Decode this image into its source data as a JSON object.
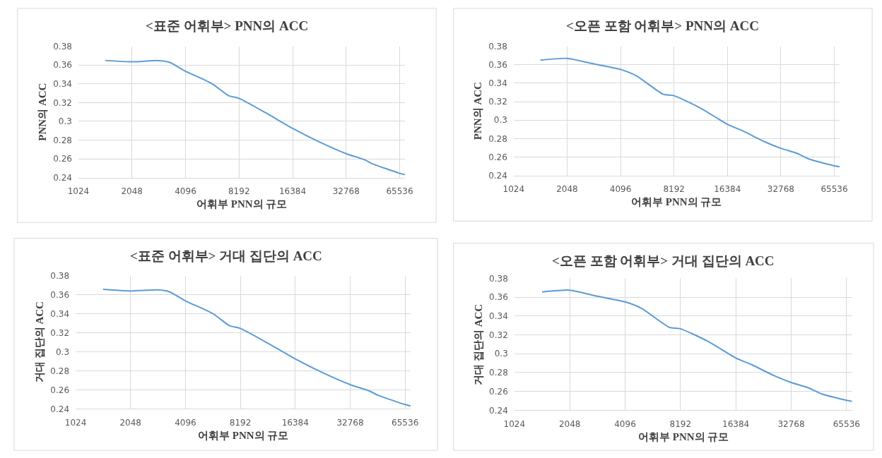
{
  "chart_data": [
    {
      "type": "line",
      "title": "<표준 어휘부> PNN의 ACC",
      "xlabel": "어휘부 PNN의 규모",
      "ylabel": "PNN의 ACC",
      "log": "x",
      "grid": true,
      "xlim": [
        1024,
        70240
      ],
      "xticks": [
        1024,
        2048,
        4096,
        8192,
        16384,
        32768,
        65536
      ],
      "ylim": [
        0.24,
        0.38
      ],
      "yticks": [
        0.24,
        0.26,
        0.28,
        0.3,
        0.32,
        0.34,
        0.36,
        0.38
      ],
      "x": [
        1448,
        2048,
        2896,
        3327,
        4096,
        5793,
        7132,
        8192,
        11585,
        16384,
        23170,
        32768,
        41587,
        46341,
        65536,
        70240
      ],
      "series": [
        {
          "color": "#5b9bd5",
          "values": [
            0.365,
            0.3635,
            0.3648,
            0.363,
            0.3535,
            0.34,
            0.3275,
            0.3245,
            0.309,
            0.2925,
            0.278,
            0.2655,
            0.259,
            0.2545,
            0.2445,
            0.243
          ]
        }
      ]
    },
    {
      "type": "line",
      "title": "<오픈 포함 어휘부> PNN의 ACC",
      "xlabel": "어휘부 PNN의 규모",
      "ylabel": "PNN의 ACC",
      "log": "x",
      "grid": true,
      "xlim": [
        1024,
        70240
      ],
      "xticks": [
        1024,
        2048,
        4096,
        8192,
        16384,
        32768,
        65536
      ],
      "ylim": [
        0.24,
        0.38
      ],
      "yticks": [
        0.24,
        0.26,
        0.28,
        0.3,
        0.32,
        0.34,
        0.36,
        0.38
      ],
      "x": [
        1448,
        2048,
        2896,
        4096,
        5043,
        7132,
        8192,
        11585,
        16384,
        20171,
        26616,
        32768,
        40342,
        47781,
        65536,
        70240
      ],
      "series": [
        {
          "color": "#5b9bd5",
          "values": [
            0.365,
            0.367,
            0.361,
            0.355,
            0.348,
            0.328,
            0.3265,
            0.313,
            0.2955,
            0.288,
            0.2765,
            0.2695,
            0.264,
            0.2575,
            0.2505,
            0.2495
          ]
        }
      ]
    },
    {
      "type": "line",
      "title": "<표준 어휘부> 거대 집단의 ACC",
      "xlabel": "어휘부 PNN의 규모",
      "ylabel": "거대 집단의 ACC",
      "log": "x",
      "grid": true,
      "xlim": [
        1024,
        70240
      ],
      "xticks": [
        1024,
        2048,
        4096,
        8192,
        16384,
        32768,
        65536
      ],
      "ylim": [
        0.24,
        0.38
      ],
      "yticks": [
        0.24,
        0.26,
        0.28,
        0.3,
        0.32,
        0.34,
        0.36,
        0.38
      ],
      "x": [
        1448,
        2048,
        2896,
        3327,
        4096,
        5793,
        7132,
        8192,
        11585,
        16384,
        23170,
        32768,
        41587,
        46341,
        65536,
        70240
      ],
      "series": [
        {
          "color": "#5b9bd5",
          "values": [
            0.3655,
            0.3638,
            0.365,
            0.3632,
            0.3535,
            0.34,
            0.3275,
            0.3245,
            0.309,
            0.2925,
            0.278,
            0.2655,
            0.259,
            0.2545,
            0.2445,
            0.243
          ]
        }
      ]
    },
    {
      "type": "line",
      "title": "<오픈 포함 어휘부> 거대 집단의 ACC",
      "xlabel": "어휘부 PNN의 규모",
      "ylabel": "거대 집단의 ACC",
      "log": "x",
      "grid": true,
      "xlim": [
        1024,
        70240
      ],
      "xticks": [
        1024,
        2048,
        4096,
        8192,
        16384,
        32768,
        65536
      ],
      "ylim": [
        0.24,
        0.38
      ],
      "yticks": [
        0.24,
        0.26,
        0.28,
        0.3,
        0.32,
        0.34,
        0.36,
        0.38
      ],
      "x": [
        1448,
        2048,
        2896,
        4096,
        5043,
        7132,
        8192,
        11585,
        16384,
        20171,
        26616,
        32768,
        40342,
        47781,
        65536,
        70240
      ],
      "series": [
        {
          "color": "#5b9bd5",
          "values": [
            0.3655,
            0.3675,
            0.361,
            0.355,
            0.348,
            0.328,
            0.3265,
            0.313,
            0.2955,
            0.288,
            0.2765,
            0.2695,
            0.264,
            0.2575,
            0.2505,
            0.2495
          ]
        }
      ]
    }
  ]
}
